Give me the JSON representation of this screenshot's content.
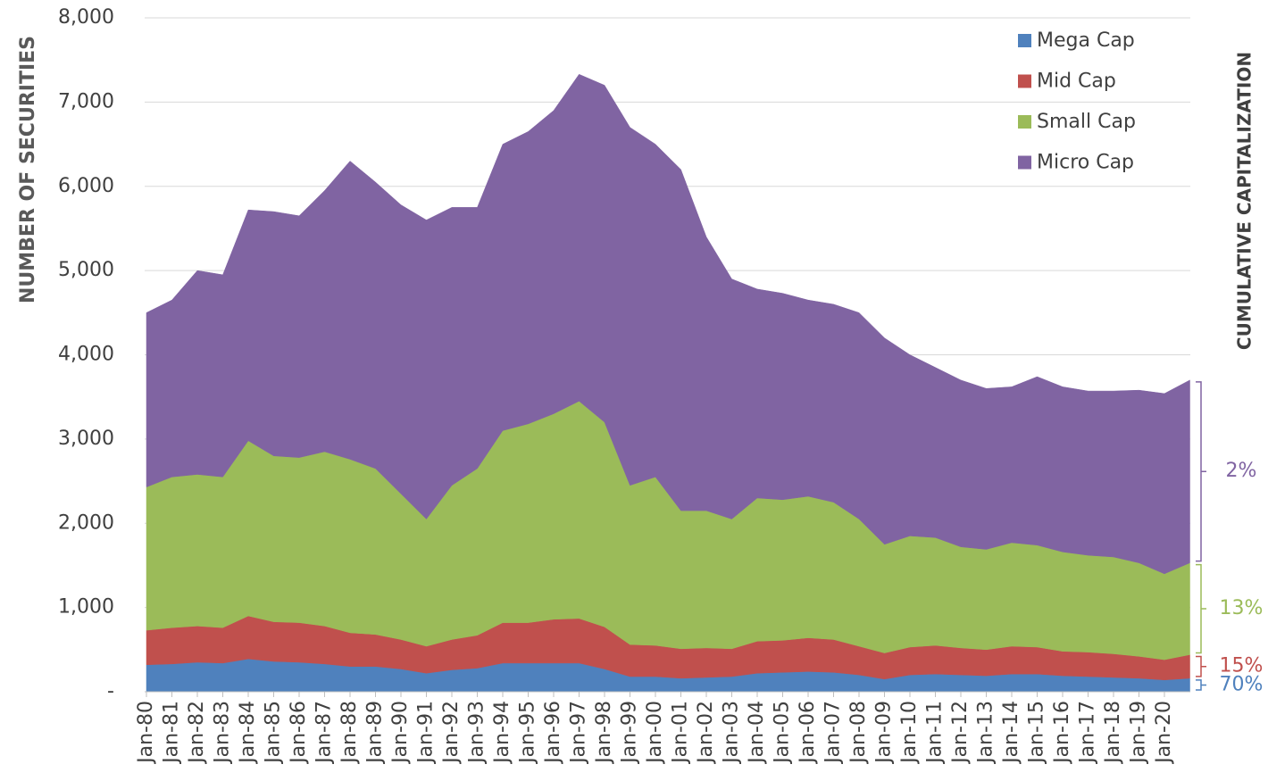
{
  "chart_data": {
    "type": "stacked_area",
    "y_axis_title": "NUMBER OF SECURITIES",
    "y2_axis_title": "CUMULATIVE CAPITALIZATION",
    "categories": [
      "Jan-80",
      "Jan-81",
      "Jan-82",
      "Jan-83",
      "Jan-84",
      "Jan-85",
      "Jan-86",
      "Jan-87",
      "Jan-88",
      "Jan-89",
      "Jan-90",
      "Jan-91",
      "Jan-92",
      "Jan-93",
      "Jan-94",
      "Jan-95",
      "Jan-96",
      "Jan-97",
      "Jan-98",
      "Jan-99",
      "Jan-00",
      "Jan-01",
      "Jan-02",
      "Jan-03",
      "Jan-04",
      "Jan-05",
      "Jan-06",
      "Jan-07",
      "Jan-08",
      "Jan-09",
      "Jan-10",
      "Jan-11",
      "Jan-12",
      "Jan-13",
      "Jan-14",
      "Jan-15",
      "Jan-16",
      "Jan-17",
      "Jan-18",
      "Jan-19",
      "Jan-20",
      null
    ],
    "series": [
      {
        "name": "Mega Cap",
        "color": "#4f81bd",
        "share_label": "70%",
        "values": [
          320,
          330,
          350,
          340,
          390,
          360,
          350,
          330,
          300,
          300,
          270,
          220,
          260,
          280,
          340,
          340,
          340,
          340,
          270,
          180,
          180,
          160,
          170,
          180,
          220,
          230,
          240,
          230,
          200,
          150,
          200,
          210,
          200,
          190,
          210,
          210,
          190,
          180,
          170,
          160,
          140,
          160
        ]
      },
      {
        "name": "Mid Cap",
        "color": "#c0504d",
        "share_label": "15%",
        "values": [
          410,
          430,
          430,
          420,
          510,
          470,
          470,
          450,
          400,
          380,
          350,
          320,
          360,
          390,
          480,
          480,
          520,
          530,
          500,
          380,
          370,
          350,
          350,
          330,
          380,
          380,
          400,
          390,
          340,
          310,
          330,
          340,
          320,
          310,
          330,
          320,
          290,
          290,
          280,
          260,
          240,
          280
        ]
      },
      {
        "name": "Small Cap",
        "color": "#9bbb59",
        "share_label": "13%",
        "values": [
          1700,
          1790,
          1800,
          1790,
          2080,
          1970,
          1960,
          2070,
          2060,
          1970,
          1730,
          1510,
          1830,
          1980,
          2280,
          2360,
          2440,
          2580,
          2430,
          1890,
          2000,
          1640,
          1630,
          1540,
          1700,
          1670,
          1680,
          1630,
          1510,
          1290,
          1320,
          1280,
          1200,
          1190,
          1230,
          1210,
          1180,
          1150,
          1150,
          1110,
          1020,
          1090
        ]
      },
      {
        "name": "Micro Cap",
        "color": "#8064a2",
        "share_label": "2%",
        "values": [
          2070,
          2100,
          2420,
          2400,
          2740,
          2900,
          2870,
          3100,
          3540,
          3400,
          3430,
          3550,
          3300,
          3100,
          3400,
          3470,
          3600,
          3880,
          4000,
          4250,
          3950,
          4050,
          3250,
          2850,
          2480,
          2450,
          2330,
          2350,
          2450,
          2450,
          2150,
          2020,
          1980,
          1910,
          1850,
          2000,
          1960,
          1950,
          1970,
          2050,
          2140,
          2170
        ]
      }
    ],
    "ylim": [
      0,
      8000
    ],
    "yticks": [
      {
        "value": 0,
        "label": "-"
      },
      {
        "value": 1000,
        "label": "1,000"
      },
      {
        "value": 2000,
        "label": "2,000"
      },
      {
        "value": 3000,
        "label": "3,000"
      },
      {
        "value": 4000,
        "label": "4,000"
      },
      {
        "value": 5000,
        "label": "5,000"
      },
      {
        "value": 6000,
        "label": "6,000"
      },
      {
        "value": 7000,
        "label": "7,000"
      },
      {
        "value": 8000,
        "label": "8,000"
      }
    ],
    "grid": true,
    "legend": "upper right"
  }
}
